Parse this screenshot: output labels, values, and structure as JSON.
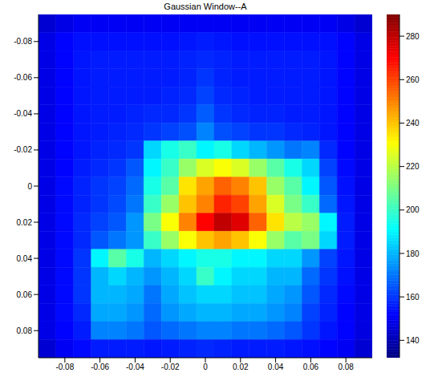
{
  "chart_data": {
    "type": "heatmap",
    "title": "Gaussian Window--A",
    "x_edges": [
      -0.095,
      -0.085,
      -0.075,
      -0.065,
      -0.055,
      -0.045,
      -0.035,
      -0.025,
      -0.015,
      -0.005,
      0.005,
      0.015,
      0.025,
      0.035,
      0.045,
      0.055,
      0.065,
      0.075,
      0.085,
      0.095
    ],
    "y_edges": [
      -0.095,
      -0.085,
      -0.075,
      -0.065,
      -0.055,
      -0.045,
      -0.035,
      -0.025,
      -0.015,
      -0.005,
      0.005,
      0.015,
      0.025,
      0.035,
      0.045,
      0.055,
      0.065,
      0.075,
      0.085,
      0.095
    ],
    "values": [
      [
        145,
        148,
        150,
        150,
        150,
        150,
        150,
        150,
        150,
        150,
        150,
        150,
        150,
        150,
        150,
        150,
        150,
        148,
        145
      ],
      [
        148,
        152,
        154,
        154,
        154,
        154,
        154,
        154,
        155,
        156,
        155,
        154,
        154,
        154,
        154,
        154,
        154,
        152,
        148
      ],
      [
        148,
        152,
        155,
        156,
        156,
        156,
        156,
        156,
        157,
        158,
        157,
        156,
        156,
        156,
        156,
        156,
        155,
        152,
        148
      ],
      [
        148,
        152,
        155,
        156,
        156,
        156,
        156,
        156,
        157,
        160,
        157,
        156,
        156,
        156,
        156,
        156,
        155,
        152,
        148
      ],
      [
        148,
        152,
        155,
        156,
        156,
        156,
        156,
        157,
        158,
        162,
        158,
        157,
        156,
        156,
        156,
        156,
        155,
        152,
        148
      ],
      [
        148,
        152,
        155,
        156,
        156,
        157,
        158,
        158,
        160,
        166,
        160,
        158,
        157,
        157,
        156,
        156,
        155,
        152,
        148
      ],
      [
        148,
        152,
        155,
        156,
        157,
        158,
        160,
        162,
        164,
        172,
        164,
        162,
        160,
        160,
        158,
        157,
        155,
        152,
        148
      ],
      [
        148,
        152,
        155,
        157,
        158,
        160,
        185,
        195,
        200,
        190,
        195,
        185,
        180,
        175,
        170,
        172,
        158,
        152,
        148
      ],
      [
        148,
        152,
        156,
        158,
        160,
        165,
        190,
        200,
        215,
        225,
        230,
        225,
        215,
        205,
        195,
        185,
        162,
        153,
        148
      ],
      [
        148,
        153,
        157,
        160,
        162,
        168,
        195,
        205,
        235,
        245,
        255,
        250,
        240,
        215,
        205,
        190,
        165,
        154,
        148
      ],
      [
        148,
        153,
        157,
        160,
        163,
        170,
        200,
        215,
        240,
        250,
        265,
        260,
        245,
        225,
        210,
        200,
        168,
        155,
        148
      ],
      [
        148,
        153,
        158,
        162,
        165,
        175,
        210,
        230,
        250,
        270,
        280,
        275,
        255,
        235,
        220,
        215,
        190,
        156,
        148
      ],
      [
        148,
        153,
        158,
        165,
        170,
        175,
        200,
        215,
        230,
        240,
        245,
        240,
        230,
        215,
        205,
        210,
        185,
        156,
        148
      ],
      [
        148,
        153,
        160,
        190,
        205,
        195,
        180,
        185,
        190,
        195,
        195,
        190,
        190,
        185,
        185,
        175,
        162,
        155,
        148
      ],
      [
        148,
        153,
        160,
        180,
        185,
        180,
        175,
        180,
        185,
        200,
        190,
        185,
        185,
        180,
        180,
        168,
        160,
        154,
        148
      ],
      [
        148,
        153,
        160,
        180,
        180,
        178,
        170,
        178,
        182,
        185,
        185,
        182,
        182,
        178,
        175,
        165,
        158,
        153,
        148
      ],
      [
        148,
        153,
        158,
        178,
        178,
        175,
        168,
        175,
        178,
        180,
        180,
        178,
        178,
        175,
        172,
        162,
        157,
        152,
        148
      ],
      [
        148,
        152,
        156,
        172,
        172,
        170,
        165,
        168,
        170,
        172,
        172,
        170,
        170,
        168,
        165,
        160,
        155,
        152,
        147
      ],
      [
        145,
        150,
        153,
        156,
        156,
        156,
        155,
        156,
        157,
        158,
        157,
        156,
        156,
        156,
        155,
        154,
        152,
        150,
        145
      ]
    ],
    "xlim": [
      -0.095,
      0.095
    ],
    "ylim": [
      -0.095,
      0.095
    ],
    "xticks": [
      -0.08,
      -0.06,
      -0.04,
      -0.02,
      0,
      0.02,
      0.04,
      0.06,
      0.08
    ],
    "yticks": [
      -0.08,
      -0.06,
      -0.04,
      -0.02,
      0,
      0.02,
      0.04,
      0.06,
      0.08
    ],
    "colorbar": {
      "lim": [
        132,
        290
      ],
      "ticks": [
        140,
        160,
        180,
        200,
        220,
        240,
        260,
        280
      ]
    }
  }
}
